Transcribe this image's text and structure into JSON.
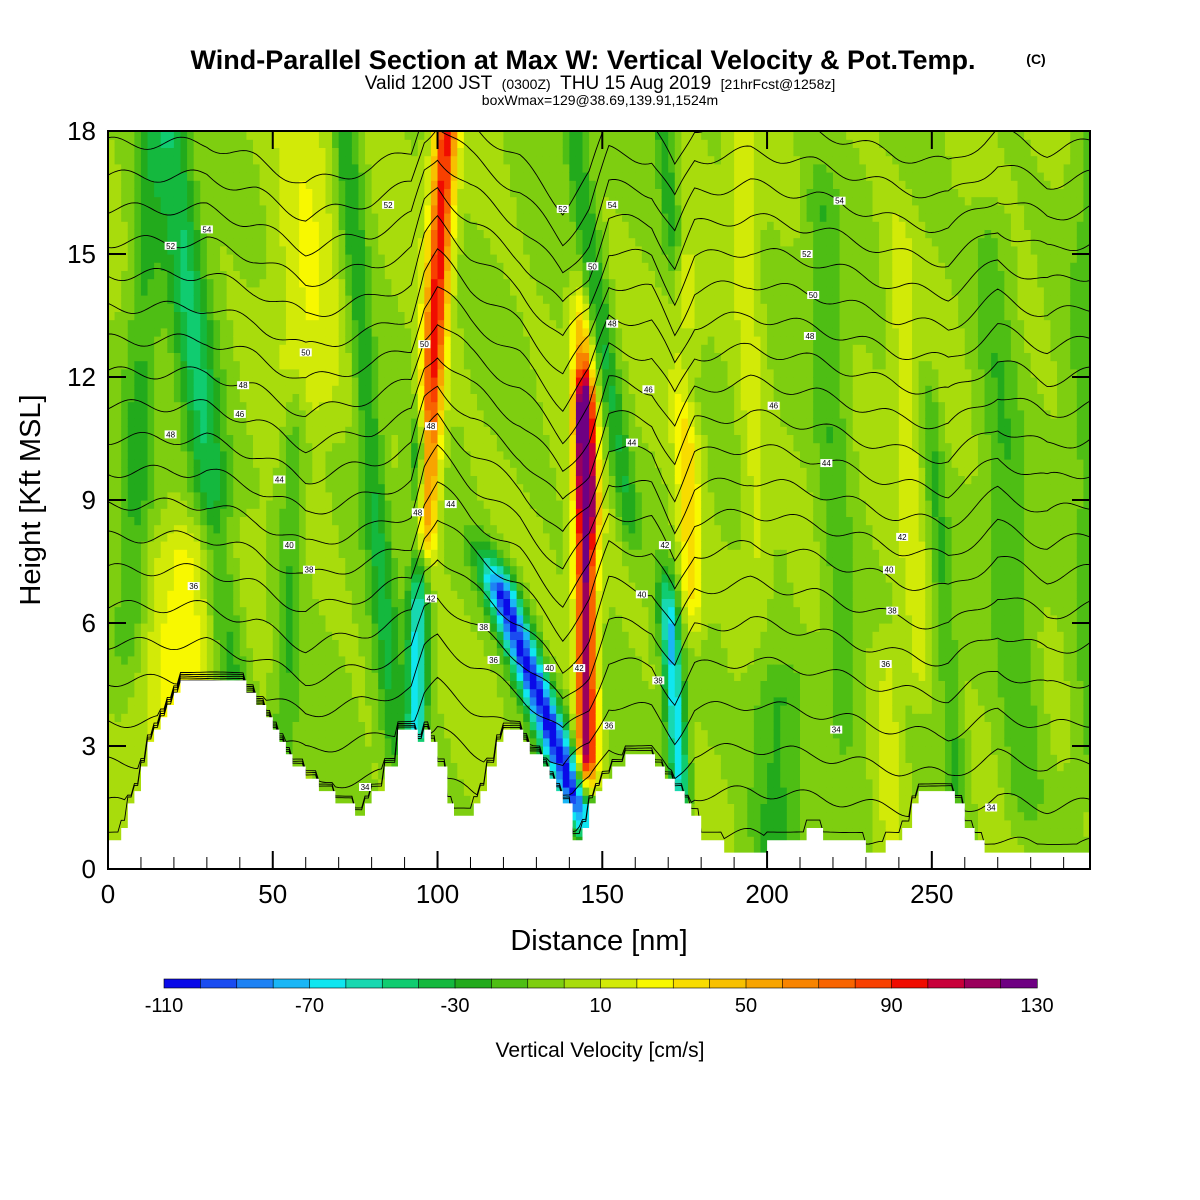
{
  "chart_data": {
    "type": "heatmap",
    "title": {
      "main": "Wind-Parallel Section at Max W: Vertical Velocity & Pot.Temp.",
      "copyright": "(C)",
      "valid_prefix": "Valid 1200 JST",
      "valid_utc": "(0300Z)",
      "valid_date": "THU 15 Aug 2019",
      "forecast": "[21hrFcst@1258z]",
      "box_info": "boxWmax=129@38.69,139.91,1524m"
    },
    "xlabel": "Distance [nm]",
    "ylabel": "Height [Kft MSL]",
    "xlim": [
      0,
      298
    ],
    "ylim": [
      0,
      18
    ],
    "x_ticks": [
      0,
      50,
      100,
      150,
      200,
      250
    ],
    "y_ticks": [
      0,
      3,
      6,
      9,
      12,
      15,
      18
    ],
    "colorbar": {
      "label": "Vertical Velocity [cm/s]",
      "range": [
        -110,
        130
      ],
      "step": 10,
      "tick_labels": [
        "-110",
        "-70",
        "-30",
        "10",
        "50",
        "90",
        "130"
      ],
      "colors": [
        "#0a0ae8",
        "#1a4cf0",
        "#1e82f4",
        "#1ab6f6",
        "#10e6f0",
        "#18d8b0",
        "#10cc70",
        "#14b83e",
        "#22aa1c",
        "#4ebe14",
        "#7ece10",
        "#a8dc0c",
        "#d2ea08",
        "#f8f800",
        "#f8dc00",
        "#f8c000",
        "#f8a400",
        "#f88400",
        "#f86400",
        "#f84000",
        "#f00c00",
        "#c8003a",
        "#9a005c",
        "#6e0082"
      ]
    },
    "terrain_kft": [
      [
        0,
        0.7
      ],
      [
        4,
        0.7
      ],
      [
        4,
        1.0
      ],
      [
        6,
        1.0
      ],
      [
        6,
        1.6
      ],
      [
        8,
        1.6
      ],
      [
        8,
        1.9
      ],
      [
        10,
        1.9
      ],
      [
        10,
        2.5
      ],
      [
        12,
        2.5
      ],
      [
        12,
        3.1
      ],
      [
        14,
        3.1
      ],
      [
        14,
        3.4
      ],
      [
        16,
        3.4
      ],
      [
        16,
        3.7
      ],
      [
        18,
        3.7
      ],
      [
        18,
        4.0
      ],
      [
        20,
        4.0
      ],
      [
        20,
        4.3
      ],
      [
        22,
        4.3
      ],
      [
        22,
        4.6
      ],
      [
        42,
        4.6
      ],
      [
        42,
        4.3
      ],
      [
        45,
        4.3
      ],
      [
        45,
        4.0
      ],
      [
        48,
        4.0
      ],
      [
        48,
        3.7
      ],
      [
        50,
        3.7
      ],
      [
        50,
        3.4
      ],
      [
        52,
        3.4
      ],
      [
        52,
        3.1
      ],
      [
        54,
        3.1
      ],
      [
        54,
        2.8
      ],
      [
        56,
        2.8
      ],
      [
        56,
        2.5
      ],
      [
        60,
        2.5
      ],
      [
        60,
        2.2
      ],
      [
        64,
        2.2
      ],
      [
        64,
        1.9
      ],
      [
        69,
        1.9
      ],
      [
        69,
        1.6
      ],
      [
        75,
        1.6
      ],
      [
        75,
        1.3
      ],
      [
        78,
        1.3
      ],
      [
        78,
        1.6
      ],
      [
        80,
        1.6
      ],
      [
        80,
        1.9
      ],
      [
        84,
        1.9
      ],
      [
        84,
        2.5
      ],
      [
        88,
        2.5
      ],
      [
        88,
        3.4
      ],
      [
        94,
        3.4
      ],
      [
        94,
        3.1
      ],
      [
        96,
        3.1
      ],
      [
        96,
        3.4
      ],
      [
        98,
        3.4
      ],
      [
        98,
        3.1
      ],
      [
        100,
        3.1
      ],
      [
        100,
        2.5
      ],
      [
        103,
        2.5
      ],
      [
        103,
        1.6
      ],
      [
        105,
        1.6
      ],
      [
        105,
        1.3
      ],
      [
        111,
        1.3
      ],
      [
        111,
        1.6
      ],
      [
        113,
        1.6
      ],
      [
        113,
        1.9
      ],
      [
        115,
        1.9
      ],
      [
        115,
        2.5
      ],
      [
        118,
        2.5
      ],
      [
        118,
        3.1
      ],
      [
        120,
        3.1
      ],
      [
        120,
        3.4
      ],
      [
        126,
        3.4
      ],
      [
        126,
        3.1
      ],
      [
        128,
        3.1
      ],
      [
        128,
        2.8
      ],
      [
        132,
        2.8
      ],
      [
        132,
        2.5
      ],
      [
        134,
        2.5
      ],
      [
        134,
        2.2
      ],
      [
        136,
        2.2
      ],
      [
        136,
        1.9
      ],
      [
        138,
        1.9
      ],
      [
        138,
        1.6
      ],
      [
        141,
        1.6
      ],
      [
        141,
        0.7
      ],
      [
        144,
        0.7
      ],
      [
        144,
        1.0
      ],
      [
        146,
        1.0
      ],
      [
        146,
        1.6
      ],
      [
        148,
        1.6
      ],
      [
        148,
        1.9
      ],
      [
        150,
        1.9
      ],
      [
        150,
        2.2
      ],
      [
        153,
        2.2
      ],
      [
        153,
        2.5
      ],
      [
        157,
        2.5
      ],
      [
        157,
        2.8
      ],
      [
        166,
        2.8
      ],
      [
        166,
        2.5
      ],
      [
        169,
        2.5
      ],
      [
        169,
        2.2
      ],
      [
        172,
        2.2
      ],
      [
        172,
        1.9
      ],
      [
        175,
        1.9
      ],
      [
        175,
        1.6
      ],
      [
        177,
        1.6
      ],
      [
        177,
        1.3
      ],
      [
        180,
        1.3
      ],
      [
        180,
        0.7
      ],
      [
        187,
        0.7
      ],
      [
        187,
        0.4
      ],
      [
        200,
        0.4
      ],
      [
        200,
        0.7
      ],
      [
        212,
        0.7
      ],
      [
        212,
        1.0
      ],
      [
        217,
        1.0
      ],
      [
        217,
        0.7
      ],
      [
        230,
        0.7
      ],
      [
        230,
        0.4
      ],
      [
        236,
        0.4
      ],
      [
        236,
        0.7
      ],
      [
        241,
        0.7
      ],
      [
        241,
        1.0
      ],
      [
        244,
        1.0
      ],
      [
        244,
        1.6
      ],
      [
        246,
        1.6
      ],
      [
        246,
        1.9
      ],
      [
        257,
        1.9
      ],
      [
        257,
        1.6
      ],
      [
        260,
        1.6
      ],
      [
        260,
        1.0
      ],
      [
        263,
        1.0
      ],
      [
        263,
        0.7
      ],
      [
        266,
        0.7
      ],
      [
        266,
        0.4
      ],
      [
        298,
        0.4
      ]
    ],
    "w_field": {
      "background": 0,
      "features": [
        {
          "x0": 38,
          "h0": 4.0,
          "dxdh": -1.35,
          "width": 6,
          "h_from": 4.0,
          "h_to": 18,
          "amp": -40
        },
        {
          "x0": 86,
          "h0": 4.0,
          "dxdh": -1.0,
          "width": 4,
          "h_from": 3.5,
          "h_to": 18,
          "amp": -30
        },
        {
          "x0": 94,
          "h0": 6.0,
          "dxdh": 0.2,
          "width": 3,
          "h_from": 3.5,
          "h_to": 10,
          "amp": -65
        },
        {
          "x0": 97,
          "h0": 10.0,
          "dxdh": 0.7,
          "width": 3.5,
          "h_from": 8.5,
          "h_to": 18,
          "amp": 95
        },
        {
          "x0": 134,
          "h0": 3.5,
          "dxdh": -4.5,
          "width": 5,
          "h_from": 1.8,
          "h_to": 6.5,
          "amp": -105
        },
        {
          "x0": 145,
          "h0": 6.0,
          "dxdh": -0.1,
          "width": 3,
          "h_from": 3.0,
          "h_to": 11,
          "amp": 120
        },
        {
          "x0": 145,
          "h0": 11.0,
          "dxdh": -0.7,
          "width": 3,
          "h_from": 9,
          "h_to": 13,
          "amp": 45
        },
        {
          "x0": 152,
          "h0": 12.0,
          "dxdh": -1.8,
          "width": 3.5,
          "h_from": 9,
          "h_to": 18,
          "amp": -30
        },
        {
          "x0": 172,
          "h0": 4.0,
          "dxdh": -0.8,
          "width": 3,
          "h_from": 2.5,
          "h_to": 6.0,
          "amp": -70
        },
        {
          "x0": 176,
          "h0": 9.5,
          "dxdh": -0.4,
          "width": 3.5,
          "h_from": 7,
          "h_to": 14,
          "amp": 40
        },
        {
          "x0": 172,
          "h0": 15.0,
          "dxdh": -1.2,
          "width": 3,
          "h_from": 12,
          "h_to": 18,
          "amp": -30
        },
        {
          "x0": 26,
          "h0": 4.5,
          "dxdh": 0.0,
          "width": 14,
          "h_from": 0.7,
          "h_to": 7.5,
          "amp": 28
        },
        {
          "x0": 60,
          "h0": 16.0,
          "dxdh": 0.0,
          "width": 10,
          "h_from": 12,
          "h_to": 18,
          "amp": 20
        },
        {
          "x0": 55,
          "h0": 7.0,
          "dxdh": 0.4,
          "width": 4,
          "h_from": 3,
          "h_to": 11,
          "amp": -20
        },
        {
          "x0": 203,
          "h0": 2.5,
          "dxdh": 0.0,
          "width": 8,
          "h_from": 0.7,
          "h_to": 4.0,
          "amp": -25
        },
        {
          "x0": 237,
          "h0": 2.5,
          "dxdh": 0.0,
          "width": 4,
          "h_from": 1.0,
          "h_to": 4.5,
          "amp": 15
        },
        {
          "x0": 220,
          "h0": 10.0,
          "dxdh": -0.6,
          "width": 5,
          "h_from": 4,
          "h_to": 16,
          "amp": -18
        },
        {
          "x0": 255,
          "h0": 5.0,
          "dxdh": -0.9,
          "width": 3,
          "h_from": 2,
          "h_to": 11,
          "amp": -20
        },
        {
          "x0": 275,
          "h0": 6.0,
          "dxdh": -0.8,
          "width": 6,
          "h_from": 2,
          "h_to": 15,
          "amp": -18
        },
        {
          "x0": 243,
          "h0": 10.0,
          "dxdh": -0.6,
          "width": 4,
          "h_from": 5,
          "h_to": 15,
          "amp": 15
        },
        {
          "x0": 195,
          "h0": 12.0,
          "dxdh": -0.5,
          "width": 4,
          "h_from": 8,
          "h_to": 18,
          "amp": 15
        },
        {
          "x0": 10,
          "h0": 12.0,
          "dxdh": 0.5,
          "width": 5,
          "h_from": 6,
          "h_to": 18,
          "amp": -22
        },
        {
          "x0": 298,
          "h0": 10.0,
          "dxdh": 0.0,
          "width": 6,
          "h_from": 3,
          "h_to": 18,
          "amp": -15
        }
      ]
    },
    "theta_contours": {
      "levels_K": [
        34,
        35,
        36,
        37,
        38,
        39,
        40,
        41,
        42,
        43,
        44,
        45,
        46,
        47,
        48,
        49,
        50,
        51,
        52,
        53,
        54
      ],
      "profile_x": [
        0,
        30,
        45,
        60,
        80,
        92,
        96,
        100,
        110,
        125,
        138,
        146,
        152,
        165,
        172,
        178,
        195,
        215,
        240,
        255,
        270,
        285,
        298
      ],
      "profile_offset_kft": [
        0.0,
        0.0,
        -0.4,
        -1.0,
        -0.6,
        -0.2,
        0.9,
        1.3,
        0.5,
        -0.4,
        -1.6,
        -0.8,
        0.6,
        0.4,
        -0.6,
        0.4,
        0.6,
        0.3,
        -0.3,
        -0.5,
        0.3,
        -0.2,
        0.0
      ],
      "base_height_kft": [
        0.6,
        1.6,
        2.6,
        3.6,
        4.6,
        5.5,
        6.4,
        7.3,
        8.1,
        8.9,
        9.7,
        10.5,
        11.3,
        12.1,
        12.9,
        13.7,
        14.5,
        15.3,
        16.1,
        16.9,
        17.7
      ],
      "labels": [
        {
          "text": "54",
          "x": 222,
          "h": 16.3
        },
        {
          "text": "52",
          "x": 212,
          "h": 15.0
        },
        {
          "text": "50",
          "x": 214,
          "h": 14.0
        },
        {
          "text": "48",
          "x": 213,
          "h": 13.0
        },
        {
          "text": "46",
          "x": 202,
          "h": 11.3
        },
        {
          "text": "44",
          "x": 218,
          "h": 9.9
        },
        {
          "text": "42",
          "x": 241,
          "h": 8.1
        },
        {
          "text": "40",
          "x": 237,
          "h": 7.3
        },
        {
          "text": "38",
          "x": 238,
          "h": 6.3
        },
        {
          "text": "36",
          "x": 236,
          "h": 5.0
        },
        {
          "text": "34",
          "x": 221,
          "h": 3.4
        },
        {
          "text": "34",
          "x": 268,
          "h": 1.5
        },
        {
          "text": "54",
          "x": 30,
          "h": 15.6
        },
        {
          "text": "52",
          "x": 19,
          "h": 15.2
        },
        {
          "text": "52",
          "x": 85,
          "h": 16.2
        },
        {
          "text": "50",
          "x": 60,
          "h": 12.6
        },
        {
          "text": "48",
          "x": 41,
          "h": 11.8
        },
        {
          "text": "46",
          "x": 40,
          "h": 11.1
        },
        {
          "text": "48",
          "x": 19,
          "h": 10.6
        },
        {
          "text": "44",
          "x": 52,
          "h": 9.5
        },
        {
          "text": "40",
          "x": 55,
          "h": 7.9
        },
        {
          "text": "38",
          "x": 61,
          "h": 7.3
        },
        {
          "text": "36",
          "x": 26,
          "h": 6.9
        },
        {
          "text": "34",
          "x": 78,
          "h": 2.0
        },
        {
          "text": "50",
          "x": 96,
          "h": 12.8
        },
        {
          "text": "48",
          "x": 98,
          "h": 10.8
        },
        {
          "text": "44",
          "x": 104,
          "h": 8.9
        },
        {
          "text": "48",
          "x": 94,
          "h": 8.7
        },
        {
          "text": "42",
          "x": 98,
          "h": 6.6
        },
        {
          "text": "38",
          "x": 114,
          "h": 5.9
        },
        {
          "text": "36",
          "x": 117,
          "h": 5.1
        },
        {
          "text": "52",
          "x": 138,
          "h": 16.1
        },
        {
          "text": "54",
          "x": 153,
          "h": 16.2
        },
        {
          "text": "50",
          "x": 147,
          "h": 14.7
        },
        {
          "text": "48",
          "x": 153,
          "h": 13.3
        },
        {
          "text": "46",
          "x": 164,
          "h": 11.7
        },
        {
          "text": "44",
          "x": 159,
          "h": 10.4
        },
        {
          "text": "42",
          "x": 169,
          "h": 7.9
        },
        {
          "text": "40",
          "x": 162,
          "h": 6.7
        },
        {
          "text": "40",
          "x": 134,
          "h": 4.9
        },
        {
          "text": "42",
          "x": 143,
          "h": 4.9
        },
        {
          "text": "38",
          "x": 167,
          "h": 4.6
        },
        {
          "text": "36",
          "x": 152,
          "h": 3.5
        }
      ]
    }
  }
}
